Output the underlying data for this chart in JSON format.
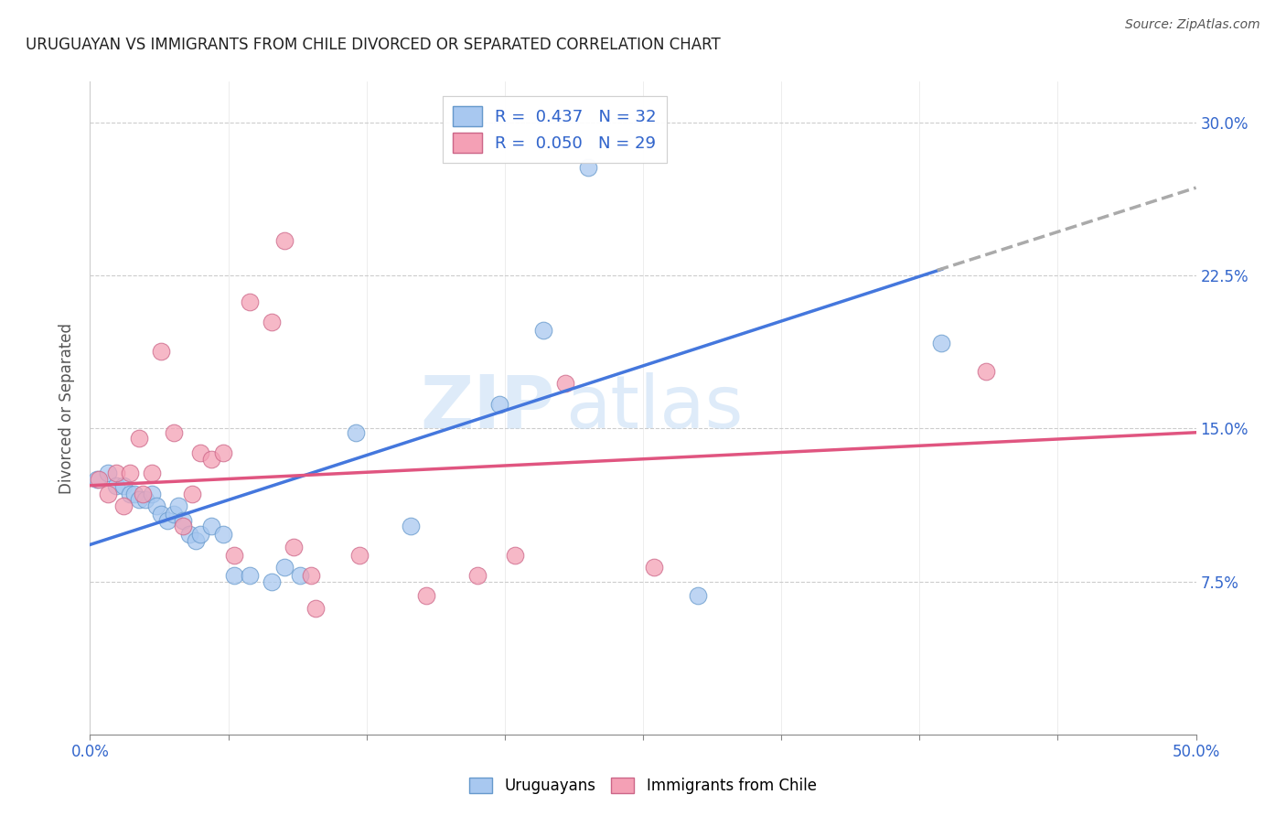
{
  "title": "URUGUAYAN VS IMMIGRANTS FROM CHILE DIVORCED OR SEPARATED CORRELATION CHART",
  "source": "Source: ZipAtlas.com",
  "ylabel": "Divorced or Separated",
  "xlim": [
    0.0,
    0.5
  ],
  "ylim": [
    0.0,
    0.32
  ],
  "xticks": [
    0.0,
    0.0625,
    0.125,
    0.1875,
    0.25,
    0.3125,
    0.375,
    0.4375,
    0.5
  ],
  "xticklabels_show": [
    "0.0%",
    "",
    "",
    "",
    "",
    "",
    "",
    "",
    "50.0%"
  ],
  "yticks": [
    0.0,
    0.075,
    0.15,
    0.225,
    0.3
  ],
  "yticklabels": [
    "",
    "7.5%",
    "15.0%",
    "22.5%",
    "30.0%"
  ],
  "legend1_label": "R =  0.437   N = 32",
  "legend2_label": "R =  0.050   N = 29",
  "legend_bottom_label1": "Uruguayans",
  "legend_bottom_label2": "Immigrants from Chile",
  "blue_color": "#a8c8f0",
  "pink_color": "#f4a0b5",
  "line_blue": "#4477dd",
  "line_pink": "#e05580",
  "dashed_color": "#aaaaaa",
  "watermark_zip": "ZIP",
  "watermark_atlas": "atlas",
  "blue_scatter_x": [
    0.003,
    0.008,
    0.012,
    0.015,
    0.018,
    0.02,
    0.022,
    0.025,
    0.028,
    0.03,
    0.032,
    0.035,
    0.038,
    0.04,
    0.042,
    0.045,
    0.048,
    0.05,
    0.055,
    0.06,
    0.065,
    0.072,
    0.082,
    0.088,
    0.095,
    0.12,
    0.145,
    0.185,
    0.205,
    0.225,
    0.275,
    0.385
  ],
  "blue_scatter_y": [
    0.125,
    0.128,
    0.122,
    0.122,
    0.118,
    0.118,
    0.115,
    0.115,
    0.118,
    0.112,
    0.108,
    0.105,
    0.108,
    0.112,
    0.105,
    0.098,
    0.095,
    0.098,
    0.102,
    0.098,
    0.078,
    0.078,
    0.075,
    0.082,
    0.078,
    0.148,
    0.102,
    0.162,
    0.198,
    0.278,
    0.068,
    0.192
  ],
  "pink_scatter_x": [
    0.004,
    0.008,
    0.012,
    0.015,
    0.018,
    0.022,
    0.024,
    0.028,
    0.032,
    0.038,
    0.042,
    0.046,
    0.05,
    0.055,
    0.06,
    0.065,
    0.072,
    0.082,
    0.088,
    0.092,
    0.1,
    0.102,
    0.122,
    0.152,
    0.175,
    0.192,
    0.215,
    0.255,
    0.405
  ],
  "pink_scatter_y": [
    0.125,
    0.118,
    0.128,
    0.112,
    0.128,
    0.145,
    0.118,
    0.128,
    0.188,
    0.148,
    0.102,
    0.118,
    0.138,
    0.135,
    0.138,
    0.088,
    0.212,
    0.202,
    0.242,
    0.092,
    0.078,
    0.062,
    0.088,
    0.068,
    0.078,
    0.088,
    0.172,
    0.082,
    0.178
  ],
  "blue_line_x0": 0.0,
  "blue_line_x1": 0.385,
  "blue_line_y0": 0.093,
  "blue_line_y1": 0.228,
  "dashed_line_x0": 0.383,
  "dashed_line_x1": 0.5,
  "dashed_line_y0": 0.2275,
  "dashed_line_y1": 0.268,
  "pink_line_x0": 0.0,
  "pink_line_x1": 0.5,
  "pink_line_y0": 0.122,
  "pink_line_y1": 0.148
}
